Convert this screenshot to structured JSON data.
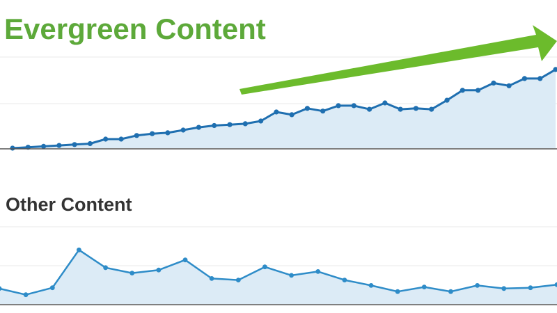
{
  "chart_data": [
    {
      "type": "area",
      "title": "Evergreen Content",
      "xlabel": "",
      "ylabel": "",
      "grid": true,
      "trend_arrow": true,
      "ylim": [
        0,
        1
      ],
      "values": [
        0.0,
        0.01,
        0.02,
        0.03,
        0.04,
        0.05,
        0.1,
        0.1,
        0.14,
        0.16,
        0.17,
        0.2,
        0.23,
        0.25,
        0.26,
        0.27,
        0.3,
        0.4,
        0.37,
        0.44,
        0.41,
        0.47,
        0.47,
        0.43,
        0.5,
        0.43,
        0.44,
        0.43,
        0.53,
        0.64,
        0.64,
        0.72,
        0.69,
        0.77,
        0.77,
        0.87
      ]
    },
    {
      "type": "area",
      "title": "Other Content",
      "xlabel": "",
      "ylabel": "",
      "grid": true,
      "ylim": [
        0,
        1
      ],
      "values": [
        0.2,
        0.12,
        0.21,
        0.7,
        0.47,
        0.4,
        0.44,
        0.57,
        0.33,
        0.31,
        0.48,
        0.37,
        0.42,
        0.31,
        0.24,
        0.16,
        0.22,
        0.16,
        0.24,
        0.2,
        0.21,
        0.25
      ]
    }
  ],
  "colors": {
    "title_green": "#5da93a",
    "arrow_green": "#6cbb2c",
    "line_blue": "#1f6fb0",
    "line_blue_light": "#2e8cc8",
    "area_fill": "#dcebf6",
    "title_dark": "#333333"
  }
}
